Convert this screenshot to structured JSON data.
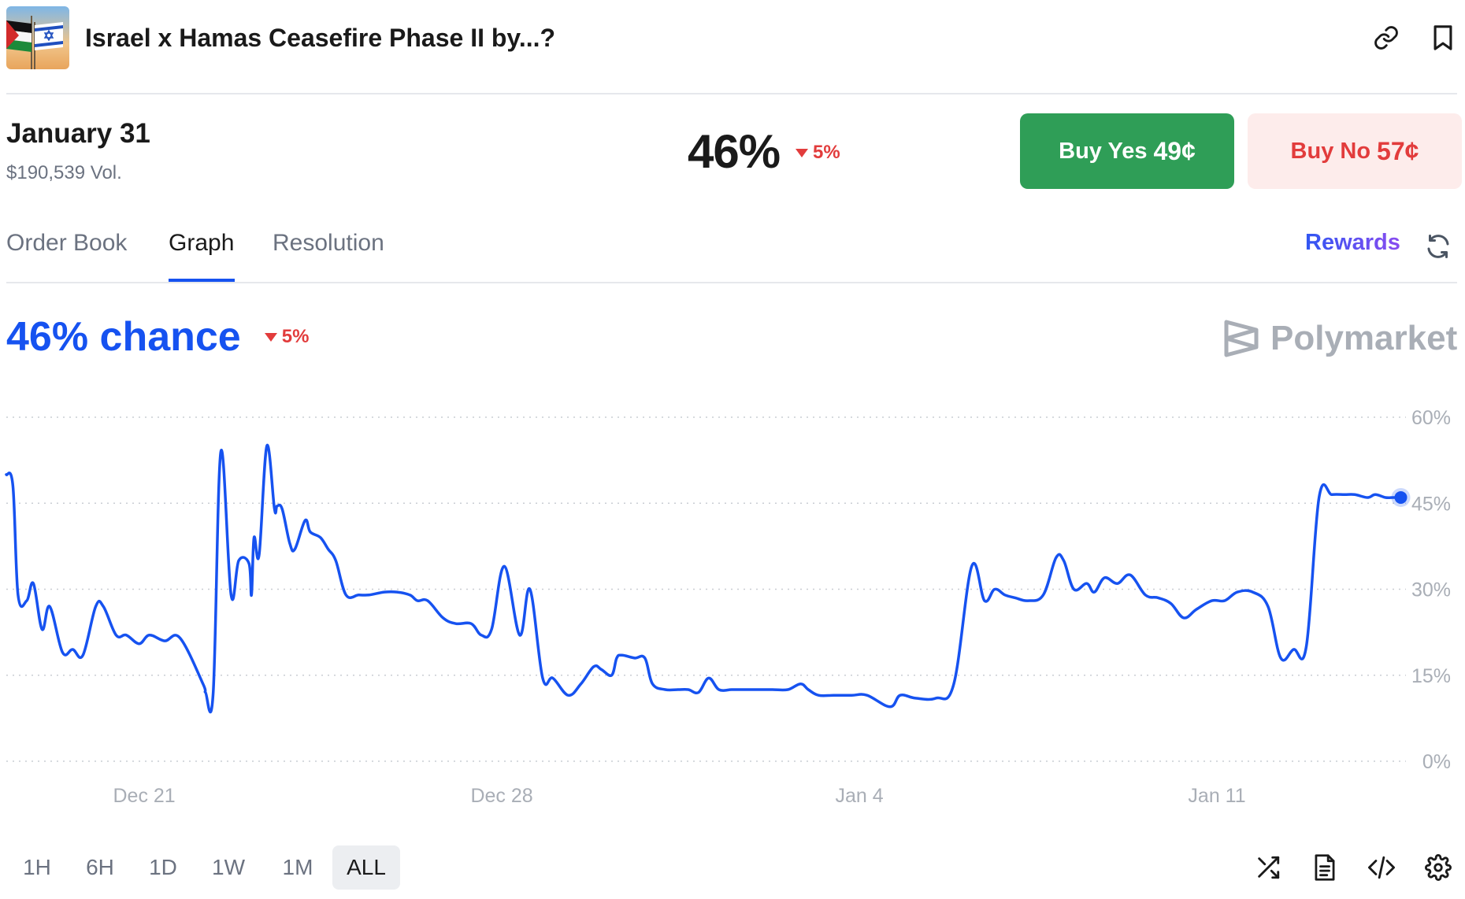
{
  "header": {
    "title": "Israel x Hamas Ceasefire Phase II by...?",
    "thumbnail_icon": "flags-thumbnail",
    "link_icon": "link-icon",
    "bookmark_icon": "bookmark-icon"
  },
  "market": {
    "date_label": "January 31",
    "volume": "$190,539 Vol.",
    "percent": "46%",
    "change": "5%",
    "change_direction": "down",
    "buy_yes_label": "Buy Yes",
    "buy_yes_price": "49¢",
    "buy_no_label": "Buy No",
    "buy_no_price": "57¢"
  },
  "tabs": {
    "items": [
      "Order Book",
      "Graph",
      "Resolution"
    ],
    "active": "Graph",
    "rewards_label": "Rewards"
  },
  "chart_header": {
    "chance_label": "46% chance",
    "change": "5%",
    "brand": "Polymarket"
  },
  "chart_data": {
    "type": "line",
    "title": "",
    "xlabel": "",
    "ylabel": "",
    "ylim": [
      0,
      60
    ],
    "y_ticks": [
      "0%",
      "15%",
      "30%",
      "45%",
      "60%"
    ],
    "x_tick_labels": [
      "Dec 21",
      "Dec 28",
      "Jan 4",
      "Jan 11"
    ],
    "x_range_days": [
      -2.7,
      24.7
    ],
    "x_ticks_days": [
      0,
      7,
      14,
      21
    ],
    "grid": true,
    "line_color": "#1652f0",
    "series": [
      {
        "x_days": [
          -2.7,
          -2.57,
          -2.47,
          -2.3,
          -2.17,
          -2.0,
          -1.85,
          -1.6,
          -1.4,
          -1.2,
          -0.95,
          -0.8,
          -0.55,
          -0.35,
          -0.1,
          0.1,
          0.4,
          0.7,
          1.15,
          1.2,
          1.35,
          1.5,
          1.7,
          1.85,
          2.05,
          2.1,
          2.15,
          2.25,
          2.4,
          2.55,
          2.6,
          2.7,
          2.85,
          2.95,
          3.15,
          3.25,
          3.45,
          3.6,
          3.75,
          3.95,
          4.2,
          4.4,
          4.7,
          4.95,
          5.2,
          5.35,
          5.55,
          5.85,
          6.1,
          6.4,
          6.6,
          6.8,
          7.05,
          7.35,
          7.55,
          7.8,
          8.0,
          8.3,
          8.55,
          8.8,
          8.95,
          9.15,
          9.25,
          9.35,
          9.6,
          9.8,
          9.95,
          10.2,
          10.45,
          10.65,
          10.85,
          11.05,
          11.25,
          11.5,
          11.75,
          12.0,
          12.3,
          12.6,
          12.85,
          13.0,
          13.2,
          13.5,
          13.85,
          14.15,
          14.6,
          14.8,
          15.1,
          15.5,
          15.85,
          16.2,
          16.45,
          16.65,
          16.85,
          17.05,
          17.3,
          17.6,
          17.85,
          18.0,
          18.2,
          18.45,
          18.6,
          18.8,
          19.05,
          19.3,
          19.6,
          19.85,
          20.1,
          20.35,
          20.6,
          20.9,
          21.15,
          21.4,
          21.7,
          22.0,
          22.25,
          22.5,
          22.75,
          23.0,
          23.25,
          23.5,
          23.7,
          23.95,
          24.1,
          24.3,
          24.45,
          24.6
        ],
        "values": [
          50,
          48,
          29,
          28,
          31,
          23,
          27,
          19,
          19.5,
          18.5,
          27,
          27,
          22,
          22,
          20.5,
          22,
          21,
          21.5,
          13.5,
          12,
          12,
          54,
          29,
          35,
          34.5,
          29,
          39,
          36,
          55,
          44,
          44.5,
          44,
          38,
          37,
          42,
          40,
          39,
          37,
          35,
          29,
          29,
          29,
          29.5,
          29.5,
          29,
          28,
          28,
          25,
          24,
          24,
          22,
          23,
          34,
          22,
          30,
          14.5,
          14.5,
          11.5,
          13.5,
          16.5,
          16,
          15,
          18,
          18.5,
          18,
          18,
          13.5,
          12.5,
          12.5,
          12.5,
          12,
          14.5,
          12.5,
          12.5,
          12.5,
          12.5,
          12.5,
          12.5,
          13.5,
          12.5,
          11.5,
          11.5,
          11.5,
          11.5,
          9.5,
          11.5,
          11,
          11,
          13.5,
          34,
          28,
          30,
          29,
          28.5,
          28,
          29,
          35.5,
          35,
          30,
          31,
          29.5,
          32,
          31,
          32.5,
          29,
          28.5,
          27.5,
          25,
          26.5,
          28,
          28,
          29.5,
          29.5,
          27,
          18,
          19.5,
          20,
          46,
          46.5,
          46.5,
          46.5,
          46,
          46.5,
          46,
          46,
          46
        ]
      }
    ]
  },
  "range": {
    "options": [
      "1H",
      "6H",
      "1D",
      "1W",
      "1M",
      "ALL"
    ],
    "active": "ALL"
  },
  "tools": [
    "shuffle-icon",
    "document-icon",
    "code-icon",
    "settings-icon"
  ]
}
